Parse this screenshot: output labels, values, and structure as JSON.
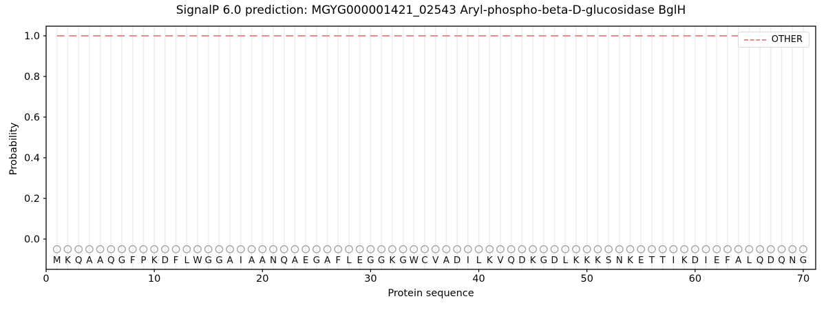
{
  "chart_data": {
    "type": "line",
    "title": "SignalP 6.0 prediction: MGYG000001421_02543 Aryl-phospho-beta-D-glucosidase BglH",
    "xlabel": "Protein sequence",
    "ylabel": "Probability",
    "xticks": [
      0,
      10,
      20,
      30,
      40,
      50,
      60,
      70
    ],
    "yticks": [
      0.0,
      0.2,
      0.4,
      0.6,
      0.8,
      1.0
    ],
    "xlim": [
      0,
      71.2
    ],
    "ylim": [
      -0.15,
      1.05
    ],
    "grid": "vertical gridline at every residue position",
    "sequence": "MKQAAQGFPKDFLWGGAIAANQAEGAFLEGGKGWCVADILKVQDKGDLKKKSNKETTIKDIEFALQDQNG",
    "sequence_length": 70,
    "series": [
      {
        "name": "OTHER",
        "style": "dashed",
        "color": "#ec8b8b",
        "x_start": 1,
        "x_end": 70,
        "y_constant": 1.0
      }
    ],
    "residue_markers": {
      "shape": "open-circle",
      "y": -0.05,
      "color": "#a6a6a6"
    },
    "legend": {
      "position": "upper right",
      "entries": [
        {
          "label": "OTHER",
          "style": "dashed",
          "color": "#ec8b8b"
        }
      ]
    },
    "colors": {
      "grid": "#efefef",
      "marker": "#a6a6a6",
      "letter": "#111111",
      "spine": "#000000",
      "background": "#ffffff",
      "tick_text": "#000000"
    }
  }
}
